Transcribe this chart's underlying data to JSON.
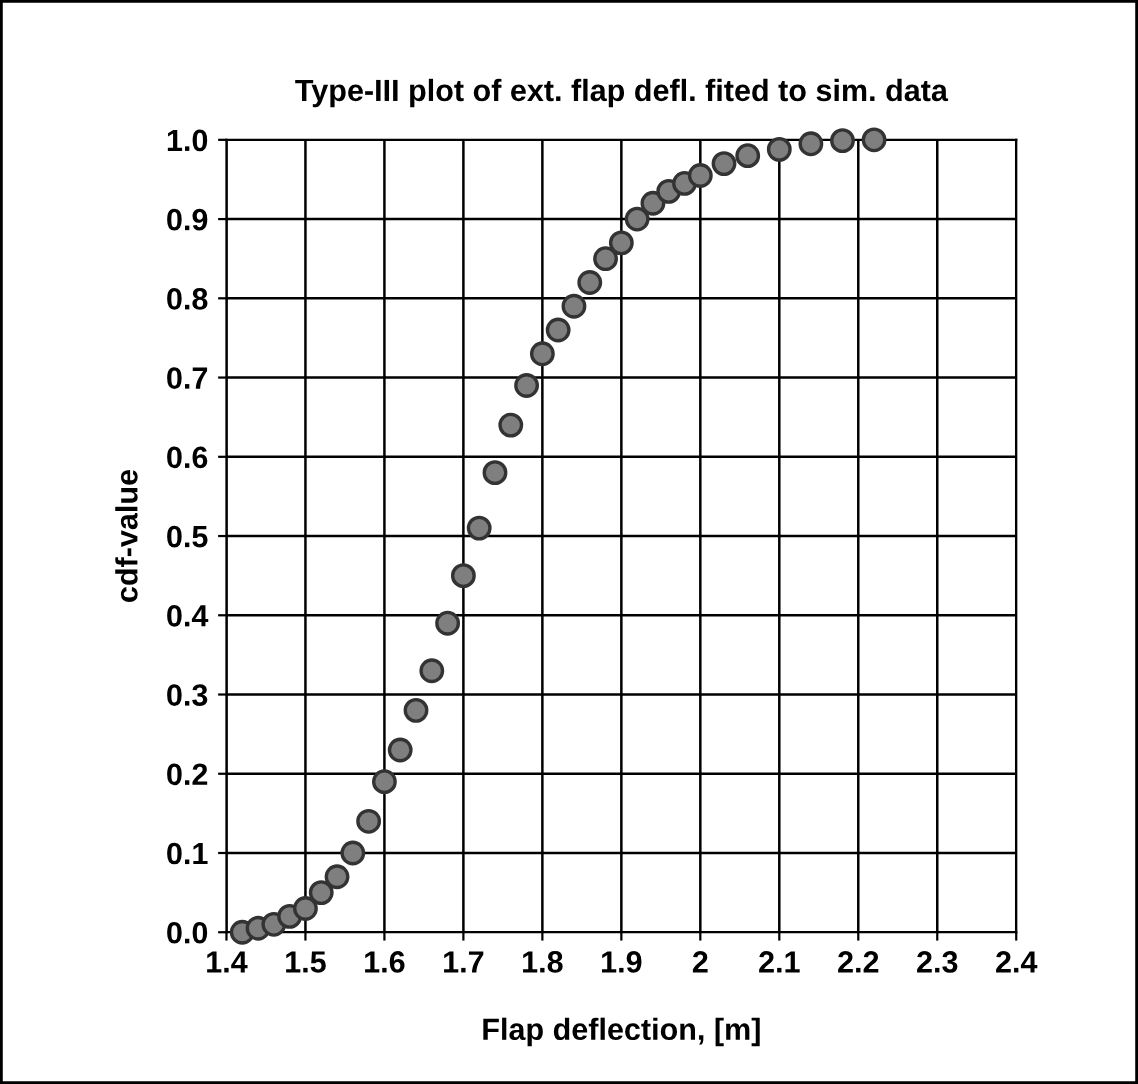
{
  "chart_data": {
    "type": "scatter",
    "title": "Type-III plot of ext. flap defl. fited to sim. data",
    "xlabel": "Flap deflection, [m]",
    "ylabel": "cdf-value",
    "x": [
      1.42,
      1.44,
      1.46,
      1.48,
      1.5,
      1.52,
      1.54,
      1.56,
      1.58,
      1.6,
      1.62,
      1.64,
      1.66,
      1.68,
      1.7,
      1.72,
      1.74,
      1.76,
      1.78,
      1.8,
      1.82,
      1.84,
      1.86,
      1.88,
      1.9,
      1.92,
      1.94,
      1.96,
      1.98,
      2.0,
      2.03,
      2.06,
      2.1,
      2.14,
      2.18,
      2.22
    ],
    "values": [
      0.0,
      0.005,
      0.01,
      0.02,
      0.03,
      0.05,
      0.07,
      0.1,
      0.14,
      0.19,
      0.23,
      0.28,
      0.33,
      0.39,
      0.45,
      0.51,
      0.58,
      0.64,
      0.69,
      0.73,
      0.76,
      0.79,
      0.82,
      0.85,
      0.87,
      0.9,
      0.92,
      0.935,
      0.945,
      0.955,
      0.97,
      0.98,
      0.988,
      0.995,
      0.999,
      1.0
    ],
    "color": "#7f7f7f",
    "marker": "circle",
    "xlim": [
      1.4,
      2.4
    ],
    "xticks": [
      1.4,
      1.5,
      1.6,
      1.7,
      1.8,
      1.9,
      2,
      2.1,
      2.2,
      2.3,
      2.4
    ],
    "ylim": [
      0.0,
      1.0
    ],
    "yticks": [
      {
        "value": 0,
        "label": "0.0"
      },
      0.1,
      0.2,
      0.3,
      0.4,
      0.5,
      0.6,
      0.7,
      0.8,
      0.9,
      {
        "value": 1,
        "label": "1.0"
      }
    ],
    "grid": true,
    "legend": false
  }
}
